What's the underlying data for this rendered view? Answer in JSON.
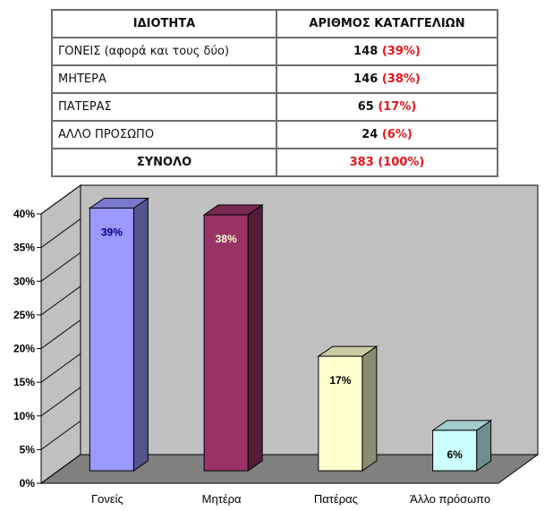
{
  "table": {
    "headers": [
      "ΙΔΙΟΤΗΤΑ",
      "ΑΡΙΘΜΟΣ ΚΑΤΑΓΓΕΛΙΩΝ"
    ],
    "rows": [
      {
        "label": "ΓΟΝΕΙΣ (αφορά και τους δύο)",
        "count": "148",
        "pct": "(39%)"
      },
      {
        "label": "ΜΗΤΕΡΑ",
        "count": "146",
        "pct": "(38%)"
      },
      {
        "label": "ΠΑΤΕΡΑΣ",
        "count": "65",
        "pct": "(17%)"
      },
      {
        "label": "ΑΛΛΟ ΠΡΟΣΩΠΟ",
        "count": "24",
        "pct": "(6%)"
      }
    ],
    "total": {
      "label": "ΣΥΝΟΛΟ",
      "value": "383 (100%)"
    },
    "pct_color": "#e8141a"
  },
  "chart_data": {
    "type": "bar",
    "categories": [
      "Γονείς",
      "Μητέρα",
      "Πατέρας",
      "Άλλο πρόσωπο"
    ],
    "values": [
      39,
      38,
      17,
      6
    ],
    "data_labels": [
      "39%",
      "38%",
      "17%",
      "6%"
    ],
    "ylim": [
      0,
      40
    ],
    "yticks": [
      "0%",
      "5%",
      "10%",
      "15%",
      "20%",
      "25%",
      "30%",
      "35%",
      "40%"
    ],
    "grid": false,
    "title": "",
    "xlabel": "",
    "ylabel": "",
    "colors": [
      "#9999ff",
      "#993366",
      "#ffffcc",
      "#ccffff"
    ],
    "label_colors": [
      "#000080",
      "#ffffcc",
      "#000000",
      "#000000"
    ],
    "wall_color": "#c0c0c0",
    "floor_color": "#808080"
  }
}
